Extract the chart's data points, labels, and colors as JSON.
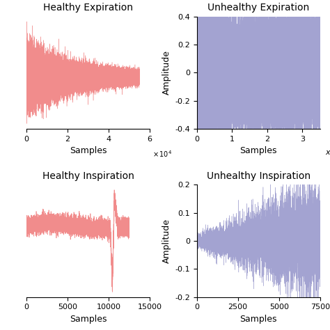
{
  "title_top_left": "Healthy Expiration",
  "title_top_right": "Unhealthy Expiration",
  "title_bot_left": "Healthy Inspiration",
  "title_bot_right": "Unhealthy Inspiration",
  "color_red": "#f08080",
  "color_blue": "#9999cc",
  "tl_xlim": [
    0,
    60000
  ],
  "tl_xticks": [
    0,
    20000,
    40000,
    60000
  ],
  "tl_xticklabels": [
    "0",
    "2",
    "4",
    "6"
  ],
  "tl_xlabel": "Samples",
  "tl_n": 55000,
  "tr_xlim": [
    0,
    35000
  ],
  "tr_xticks": [
    0,
    10000,
    20000,
    30000
  ],
  "tr_xticklabels": [
    "0",
    "1",
    "2",
    "3"
  ],
  "tr_xlabel": "Samples",
  "tr_ylabel": "Amplitude",
  "tr_ylim": [
    -0.4,
    0.4
  ],
  "tr_yticks": [
    -0.4,
    -0.2,
    0.0,
    0.2,
    0.4
  ],
  "tr_n": 35000,
  "bl_xlim": [
    0,
    15000
  ],
  "bl_xticks": [
    0,
    5000,
    10000,
    15000
  ],
  "bl_xticklabels": [
    "0",
    "5000",
    "10000",
    "15000"
  ],
  "bl_xlabel": "Samples",
  "bl_n": 12500,
  "br_xlim": [
    0,
    7500
  ],
  "br_xticks": [
    0,
    2500,
    5000,
    7500
  ],
  "br_xticklabels": [
    "0",
    "2500",
    "5000",
    "7500"
  ],
  "br_xlabel": "Samples",
  "br_ylabel": "Amplitude",
  "br_ylim": [
    -0.2,
    0.2
  ],
  "br_yticks": [
    -0.2,
    -0.1,
    0.0,
    0.1,
    0.2
  ],
  "br_n": 7500,
  "title_fontsize": 10,
  "label_fontsize": 9,
  "tick_fontsize": 8
}
